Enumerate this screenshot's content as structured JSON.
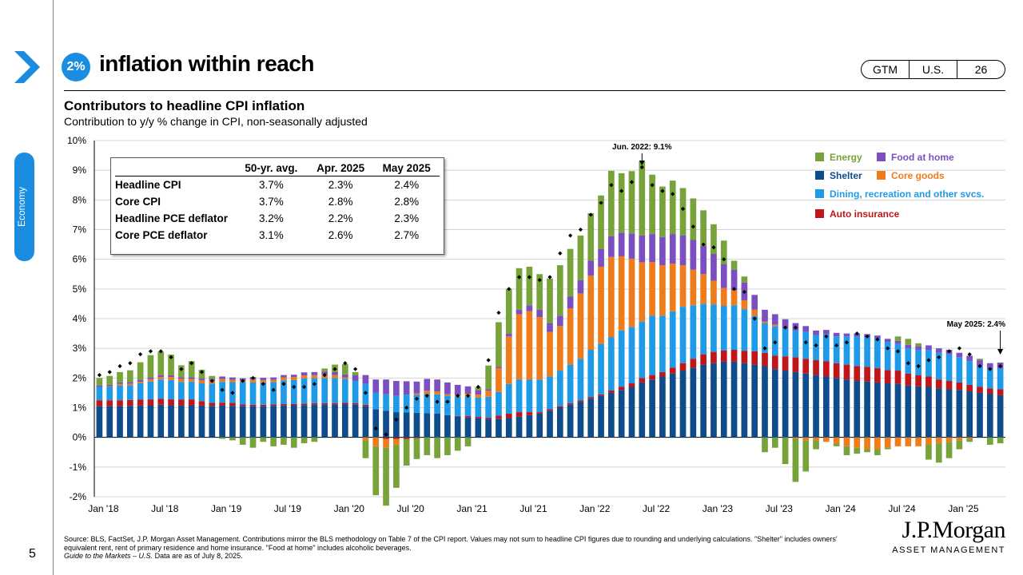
{
  "page": {
    "number": "5",
    "section_tab": "Economy",
    "badge": "2%",
    "title": "inflation within reach",
    "nav_pills": [
      "GTM",
      "U.S.",
      "26"
    ]
  },
  "colors": {
    "accent": "#1a8de0",
    "energy": "#77a33a",
    "food_at_home": "#7c4fc0",
    "shelter": "#0f4c8c",
    "core_goods": "#ef7c1a",
    "dining_services": "#1f9ae8",
    "auto_insurance": "#c0161a"
  },
  "summary_table": {
    "headers": [
      "",
      "50-yr. avg.",
      "Apr. 2025",
      "May 2025"
    ],
    "rows": [
      [
        "Headline CPI",
        "3.7%",
        "2.3%",
        "2.4%"
      ],
      [
        "Core CPI",
        "3.7%",
        "2.8%",
        "2.8%"
      ],
      [
        "Headline PCE deflator",
        "3.2%",
        "2.2%",
        "2.3%"
      ],
      [
        "Core PCE deflator",
        "3.1%",
        "2.6%",
        "2.7%"
      ]
    ]
  },
  "source_text": {
    "main": "Source: BLS, FactSet, J.P. Morgan Asset Management. Contributions mirror the BLS methodology on Table 7 of the CPI report. Values may not sum to headline CPI figures due to rounding and underlying calculations. \"Shelter\" includes owners' equivalent rent, rent of primary residence and home insurance. \"Food at home\" includes alcoholic beverages.",
    "guide": "Guide to the Markets – U.S.",
    "asof": " Data are as of July 8, 2025."
  },
  "logo": {
    "name": "J.P.Morgan",
    "sub": "ASSET MANAGEMENT"
  },
  "chart_data": {
    "type": "bar",
    "stacked": true,
    "title": "Contributors to headline CPI inflation",
    "subtitle": "Contribution to y/y % change in CPI, non-seasonally adjusted",
    "ylim": [
      -2,
      10
    ],
    "y_ticks": [
      "-2%",
      "-1%",
      "0%",
      "1%",
      "2%",
      "3%",
      "4%",
      "5%",
      "6%",
      "7%",
      "8%",
      "9%",
      "10%"
    ],
    "x_ticks": [
      "Jan '18",
      "Jul '18",
      "Jan '19",
      "Jul '19",
      "Jan '20",
      "Jul '20",
      "Jan '21",
      "Jul '21",
      "Jan '22",
      "Jul '22",
      "Jan '23",
      "Jul '23",
      "Jan '24",
      "Jul '24",
      "Jan '25"
    ],
    "grid": true,
    "legend": [
      "Energy",
      "Food at home",
      "Shelter",
      "Core goods",
      "Dining, recreation and other svcs.",
      "Auto insurance"
    ],
    "legend_position": "top-right",
    "x_start": "Jan 2018",
    "x_end": "May 2025",
    "annotations": [
      {
        "text": "Jun. 2022: 9.1%",
        "x": "Jun 2022",
        "y": 9.1
      },
      {
        "text": "May 2025: 2.4%",
        "x": "May 2025",
        "y": 2.4
      }
    ],
    "headline": [
      2.1,
      2.2,
      2.4,
      2.5,
      2.8,
      2.9,
      2.9,
      2.7,
      2.3,
      2.5,
      2.2,
      1.9,
      1.6,
      1.5,
      1.9,
      2.0,
      1.8,
      1.6,
      1.8,
      1.7,
      1.7,
      1.8,
      2.1,
      2.3,
      2.5,
      2.3,
      1.5,
      0.3,
      0.1,
      0.6,
      1.0,
      1.3,
      1.4,
      1.2,
      1.2,
      1.4,
      1.4,
      1.7,
      2.6,
      4.2,
      5.0,
      5.4,
      5.4,
      5.3,
      5.4,
      6.2,
      6.8,
      7.0,
      7.5,
      7.9,
      8.5,
      8.3,
      8.6,
      9.1,
      8.5,
      8.3,
      8.2,
      7.7,
      7.1,
      6.5,
      6.4,
      6.0,
      5.0,
      4.9,
      4.0,
      3.0,
      3.2,
      3.7,
      3.7,
      3.2,
      3.1,
      3.4,
      3.1,
      3.2,
      3.5,
      3.4,
      3.3,
      3.0,
      2.9,
      2.5,
      2.4,
      2.6,
      2.7,
      2.9,
      3.0,
      2.8,
      2.4,
      2.3,
      2.4
    ],
    "series": [
      {
        "name": "Shelter",
        "values": [
          1.05,
          1.05,
          1.05,
          1.06,
          1.07,
          1.08,
          1.1,
          1.08,
          1.07,
          1.08,
          1.07,
          1.06,
          1.07,
          1.06,
          1.06,
          1.05,
          1.05,
          1.06,
          1.07,
          1.08,
          1.09,
          1.1,
          1.1,
          1.1,
          1.12,
          1.1,
          1.05,
          0.95,
          0.9,
          0.85,
          0.84,
          0.83,
          0.82,
          0.8,
          0.75,
          0.7,
          0.67,
          0.64,
          0.62,
          0.63,
          0.65,
          0.7,
          0.75,
          0.8,
          0.9,
          1.0,
          1.1,
          1.2,
          1.3,
          1.4,
          1.5,
          1.6,
          1.7,
          1.85,
          1.95,
          2.05,
          2.15,
          2.25,
          2.35,
          2.45,
          2.5,
          2.55,
          2.55,
          2.5,
          2.45,
          2.4,
          2.3,
          2.25,
          2.2,
          2.15,
          2.1,
          2.05,
          2.0,
          1.95,
          1.9,
          1.88,
          1.85,
          1.82,
          1.8,
          1.75,
          1.72,
          1.7,
          1.65,
          1.62,
          1.6,
          1.55,
          1.5,
          1.47,
          1.42
        ]
      },
      {
        "name": "Auto insurance",
        "values": [
          0.2,
          0.2,
          0.2,
          0.2,
          0.2,
          0.2,
          0.2,
          0.2,
          0.2,
          0.2,
          0.15,
          0.1,
          0.1,
          0.1,
          0.05,
          0.05,
          0.05,
          0.05,
          0.05,
          0.05,
          0.05,
          0.05,
          0.05,
          0.05,
          0.05,
          0.05,
          0.05,
          0.0,
          -0.05,
          -0.05,
          -0.05,
          -0.03,
          0.0,
          0.0,
          0.0,
          0.02,
          0.05,
          0.05,
          0.05,
          0.1,
          0.15,
          0.15,
          0.1,
          0.05,
          0.05,
          0.05,
          0.05,
          0.05,
          0.05,
          0.05,
          0.08,
          0.1,
          0.12,
          0.15,
          0.15,
          0.15,
          0.2,
          0.25,
          0.3,
          0.35,
          0.38,
          0.38,
          0.4,
          0.42,
          0.45,
          0.45,
          0.45,
          0.48,
          0.5,
          0.5,
          0.5,
          0.52,
          0.5,
          0.5,
          0.5,
          0.5,
          0.48,
          0.45,
          0.45,
          0.4,
          0.38,
          0.35,
          0.3,
          0.28,
          0.25,
          0.22,
          0.2,
          0.18,
          0.2
        ]
      },
      {
        "name": "Dining, recreation and other svcs.",
        "values": [
          0.45,
          0.45,
          0.5,
          0.5,
          0.55,
          0.6,
          0.65,
          0.65,
          0.6,
          0.6,
          0.6,
          0.65,
          0.7,
          0.7,
          0.75,
          0.75,
          0.75,
          0.75,
          0.8,
          0.8,
          0.85,
          0.85,
          0.85,
          0.85,
          0.8,
          0.75,
          0.7,
          0.55,
          0.55,
          0.55,
          0.6,
          0.6,
          0.65,
          0.65,
          0.65,
          0.65,
          0.65,
          0.65,
          0.7,
          0.8,
          1.0,
          1.1,
          1.1,
          1.1,
          1.1,
          1.2,
          1.3,
          1.4,
          1.6,
          1.7,
          1.8,
          1.9,
          1.9,
          1.9,
          2.0,
          1.9,
          1.9,
          1.9,
          1.8,
          1.7,
          1.6,
          1.5,
          1.5,
          1.4,
          1.2,
          1.0,
          1.0,
          0.95,
          0.9,
          0.9,
          0.85,
          0.9,
          0.9,
          0.95,
          1.0,
          1.0,
          1.0,
          0.95,
          0.9,
          0.85,
          0.85,
          0.9,
          0.9,
          0.9,
          0.85,
          0.8,
          0.7,
          0.65,
          0.7
        ]
      },
      {
        "name": "Core goods",
        "values": [
          0.0,
          0.02,
          0.05,
          0.05,
          0.05,
          0.08,
          0.08,
          0.1,
          0.1,
          0.08,
          0.1,
          0.1,
          0.1,
          0.08,
          0.05,
          0.1,
          0.08,
          0.08,
          0.1,
          0.1,
          0.1,
          0.1,
          0.12,
          0.1,
          0.05,
          0.0,
          -0.1,
          -0.3,
          -0.3,
          -0.2,
          0.0,
          0.05,
          0.1,
          0.1,
          0.05,
          0.05,
          0.1,
          0.1,
          0.2,
          0.8,
          1.6,
          2.2,
          2.3,
          2.1,
          1.5,
          1.5,
          1.9,
          2.2,
          2.5,
          2.6,
          2.7,
          2.5,
          2.3,
          2.0,
          1.8,
          1.7,
          1.6,
          1.4,
          1.2,
          1.0,
          0.8,
          0.6,
          0.5,
          0.3,
          0.2,
          0.05,
          0.05,
          0.0,
          -0.05,
          -0.1,
          -0.1,
          -0.15,
          -0.2,
          -0.3,
          -0.35,
          -0.4,
          -0.4,
          -0.35,
          -0.3,
          -0.3,
          -0.3,
          -0.25,
          -0.2,
          -0.15,
          -0.1,
          -0.05,
          0.0,
          0.0,
          0.0
        ]
      },
      {
        "name": "Food at home",
        "values": [
          0.05,
          0.05,
          0.05,
          0.05,
          0.06,
          0.06,
          0.06,
          0.06,
          0.06,
          0.06,
          0.06,
          0.06,
          0.08,
          0.08,
          0.08,
          0.08,
          0.08,
          0.08,
          0.08,
          0.08,
          0.1,
          0.1,
          0.1,
          0.1,
          0.1,
          0.2,
          0.3,
          0.45,
          0.5,
          0.5,
          0.45,
          0.4,
          0.4,
          0.4,
          0.4,
          0.35,
          0.25,
          0.15,
          0.05,
          0.05,
          0.1,
          0.15,
          0.2,
          0.25,
          0.3,
          0.35,
          0.4,
          0.45,
          0.5,
          0.6,
          0.7,
          0.8,
          0.85,
          0.9,
          0.95,
          0.95,
          1.0,
          1.0,
          1.0,
          0.95,
          0.9,
          0.8,
          0.7,
          0.6,
          0.5,
          0.4,
          0.35,
          0.3,
          0.25,
          0.2,
          0.15,
          0.15,
          0.12,
          0.1,
          0.1,
          0.1,
          0.1,
          0.1,
          0.1,
          0.12,
          0.12,
          0.15,
          0.15,
          0.15,
          0.15,
          0.18,
          0.2,
          0.2,
          0.2
        ]
      },
      {
        "name": "Energy",
        "values": [
          0.25,
          0.3,
          0.35,
          0.4,
          0.6,
          0.75,
          0.8,
          0.7,
          0.4,
          0.55,
          0.3,
          0.1,
          -0.05,
          -0.1,
          -0.25,
          -0.35,
          -0.15,
          -0.3,
          -0.25,
          -0.35,
          -0.2,
          -0.15,
          0.1,
          0.25,
          0.35,
          0.1,
          -0.6,
          -1.65,
          -1.95,
          -1.45,
          -0.9,
          -0.7,
          -0.6,
          -0.7,
          -0.6,
          -0.45,
          -0.3,
          0.1,
          0.8,
          1.5,
          1.5,
          1.4,
          1.3,
          1.2,
          1.5,
          1.7,
          1.6,
          1.5,
          1.6,
          1.8,
          2.2,
          2.0,
          2.1,
          2.5,
          2.0,
          1.7,
          1.8,
          1.6,
          1.4,
          1.2,
          1.0,
          0.8,
          0.3,
          0.2,
          0.0,
          -0.5,
          -0.35,
          -0.9,
          -1.45,
          -1.05,
          -0.3,
          0.0,
          -0.1,
          -0.3,
          -0.2,
          -0.1,
          -0.2,
          -0.05,
          0.15,
          0.2,
          0.1,
          -0.5,
          -0.65,
          -0.55,
          -0.3,
          -0.1,
          0.05,
          -0.25,
          -0.2
        ]
      }
    ]
  }
}
